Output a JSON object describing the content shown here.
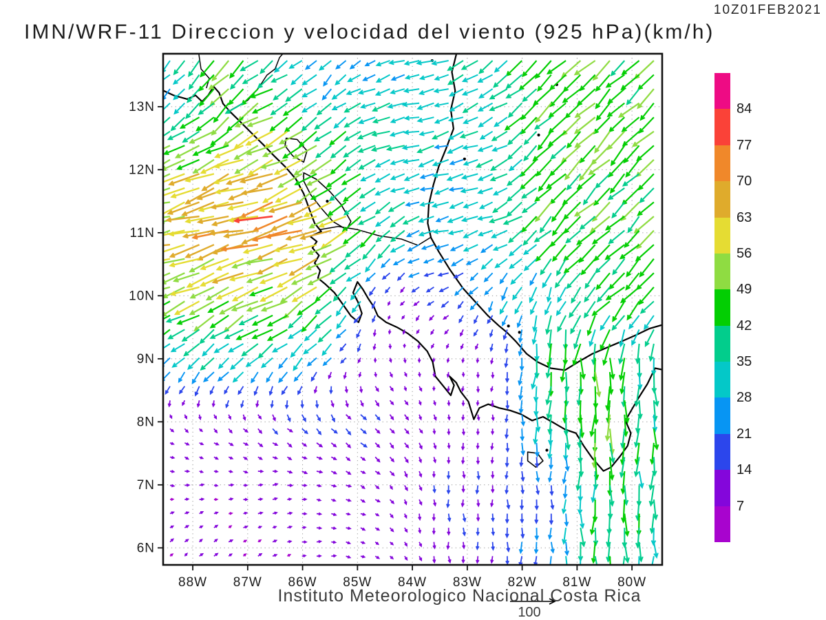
{
  "header": {
    "timestamp": "10Z01FEB2021",
    "title": "IMN/WRF-11 Direccion y velocidad del viento (925 hPa)(km/h)"
  },
  "footer": {
    "credit": "Instituto Meteorologico Nacional Costa Rica"
  },
  "chart_data": {
    "type": "vector_field",
    "title": "IMN/WRF-11 Direccion y velocidad del viento (925 hPa)(km/h)",
    "valid_time": "10Z01FEB2021",
    "level": "925 hPa",
    "units": "km/h",
    "domain": {
      "lon_min": -88.54,
      "lon_max": -79.45,
      "lat_min": 5.73,
      "lat_max": 13.84
    },
    "lat_ticks": [
      {
        "value": 13,
        "label": "13N"
      },
      {
        "value": 12,
        "label": "12N"
      },
      {
        "value": 11,
        "label": "11N"
      },
      {
        "value": 10,
        "label": "10N"
      },
      {
        "value": 9,
        "label": "9N"
      },
      {
        "value": 8,
        "label": "8N"
      },
      {
        "value": 7,
        "label": "7N"
      },
      {
        "value": 6,
        "label": "6N"
      }
    ],
    "lon_ticks": [
      {
        "value": -88,
        "label": "88W"
      },
      {
        "value": -87,
        "label": "87W"
      },
      {
        "value": -86,
        "label": "86W"
      },
      {
        "value": -85,
        "label": "85W"
      },
      {
        "value": -84,
        "label": "84W"
      },
      {
        "value": -83,
        "label": "83W"
      },
      {
        "value": -82,
        "label": "82W"
      },
      {
        "value": -81,
        "label": "81W"
      },
      {
        "value": -80,
        "label": "80W"
      }
    ],
    "grid_on": true,
    "colorbar": {
      "levels": [
        7,
        14,
        21,
        28,
        35,
        42,
        49,
        56,
        63,
        70,
        77,
        84
      ],
      "colors": [
        "#A804CE",
        "#8406DB",
        "#2C46EC",
        "#0795F3",
        "#04C8C8",
        "#02CD8C",
        "#03CE03",
        "#8FDC42",
        "#E5DC33",
        "#DFAB2C",
        "#F0882A",
        "#FA4238",
        "#EE0B84"
      ]
    },
    "reference_vector": {
      "label": "100",
      "speed": 100
    },
    "wind_grid": {
      "lons": [
        -88.5,
        -87.5,
        -86.5,
        -85.5,
        -84.5,
        -83.5,
        -82.5,
        -81.5,
        -80.5,
        -79.5
      ],
      "lats": [
        6,
        7,
        8,
        9,
        10,
        11,
        12,
        13,
        14
      ],
      "u": [
        [
          6,
          6,
          7,
          9,
          7,
          1,
          0,
          0,
          0,
          0
        ],
        [
          8,
          8,
          9,
          9,
          7,
          1,
          0,
          0,
          0,
          0
        ],
        [
          6,
          7,
          10,
          11,
          10,
          2,
          0,
          0,
          0,
          0
        ],
        [
          -21,
          -23,
          -23,
          -14,
          3,
          0,
          -2,
          -3,
          0,
          0
        ],
        [
          -45,
          -48,
          -48,
          -34,
          -3,
          -15,
          -12,
          -8,
          -30,
          -30
        ],
        [
          -56,
          -64,
          -68,
          -58,
          -28,
          -28,
          -30,
          -30,
          -32,
          -32
        ],
        [
          -50,
          -55,
          -62,
          -40,
          -31,
          -30,
          -32,
          -32,
          -33,
          -33
        ],
        [
          -20,
          -32,
          -45,
          -24,
          -33,
          -31,
          -30,
          -31,
          -33,
          -33
        ],
        [
          -17,
          -36,
          -18,
          -17,
          -20,
          -30,
          -26,
          -31,
          -33,
          -33
        ]
      ],
      "v": [
        [
          5,
          5,
          3,
          0,
          -5,
          -13,
          -15,
          -25,
          -42,
          -35
        ],
        [
          0,
          0,
          1,
          -2,
          -7,
          -14,
          -16,
          -18,
          -44,
          -36
        ],
        [
          -6,
          -7,
          -10,
          -11,
          -10,
          -10,
          -12,
          -35,
          -48,
          -38
        ],
        [
          -21,
          -23,
          -23,
          -14,
          -8,
          -8,
          -10,
          -45,
          -45,
          -35
        ],
        [
          -22,
          -24,
          -24,
          -34,
          -9,
          -7,
          -22,
          -30,
          -30,
          -30
        ],
        [
          -14,
          -16,
          -17,
          -22,
          -28,
          -7,
          -10,
          -30,
          -32,
          -32
        ],
        [
          -20,
          -22,
          -25,
          -30,
          -10,
          -8,
          -10,
          -32,
          -33,
          -33
        ],
        [
          -20,
          -32,
          -22,
          -24,
          -10,
          -8,
          -15,
          -31,
          -33,
          -33
        ],
        [
          -17,
          -36,
          -18,
          -17,
          -10,
          -8,
          -26,
          -31,
          -33,
          -33
        ]
      ]
    },
    "coastlines": {
      "pacific_coast": [
        [
          -88.6,
          13.28
        ],
        [
          -88.35,
          13.18
        ],
        [
          -88.1,
          13.12
        ],
        [
          -87.95,
          13.18
        ],
        [
          -87.83,
          13.08
        ],
        [
          -87.72,
          13.18
        ],
        [
          -87.62,
          13.32
        ],
        [
          -87.52,
          13.22
        ],
        [
          -87.45,
          13.05
        ],
        [
          -87.32,
          12.92
        ],
        [
          -87.18,
          12.8
        ],
        [
          -86.95,
          12.6
        ],
        [
          -86.72,
          12.4
        ],
        [
          -86.52,
          12.22
        ],
        [
          -86.32,
          12.05
        ],
        [
          -86.12,
          11.85
        ],
        [
          -85.98,
          11.62
        ],
        [
          -85.88,
          11.38
        ],
        [
          -85.78,
          11.15
        ],
        [
          -85.66,
          11.02
        ],
        [
          -85.86,
          10.94
        ],
        [
          -85.74,
          10.86
        ],
        [
          -85.82,
          10.76
        ],
        [
          -85.7,
          10.64
        ],
        [
          -85.78,
          10.52
        ],
        [
          -85.68,
          10.4
        ],
        [
          -85.72,
          10.28
        ],
        [
          -85.58,
          10.18
        ],
        [
          -85.42,
          10.05
        ],
        [
          -85.28,
          9.88
        ],
        [
          -85.12,
          9.68
        ],
        [
          -84.98,
          9.58
        ],
        [
          -84.92,
          9.72
        ],
        [
          -84.99,
          9.9
        ],
        [
          -85.08,
          10.05
        ],
        [
          -85.0,
          10.22
        ],
        [
          -84.9,
          10.1
        ],
        [
          -84.8,
          9.95
        ],
        [
          -84.7,
          9.82
        ],
        [
          -84.63,
          9.68
        ],
        [
          -84.48,
          9.58
        ],
        [
          -84.28,
          9.5
        ],
        [
          -84.08,
          9.4
        ],
        [
          -83.9,
          9.28
        ],
        [
          -83.73,
          9.12
        ],
        [
          -83.63,
          8.95
        ],
        [
          -83.58,
          8.72
        ],
        [
          -83.45,
          8.58
        ],
        [
          -83.3,
          8.42
        ],
        [
          -83.24,
          8.58
        ],
        [
          -83.32,
          8.72
        ],
        [
          -83.2,
          8.62
        ],
        [
          -83.12,
          8.48
        ],
        [
          -82.98,
          8.32
        ],
        [
          -82.88,
          8.04
        ],
        [
          -82.78,
          8.22
        ],
        [
          -82.62,
          8.28
        ],
        [
          -82.42,
          8.22
        ],
        [
          -82.22,
          8.18
        ],
        [
          -82.02,
          8.12
        ],
        [
          -81.82,
          8.02
        ],
        [
          -81.62,
          8.08
        ],
        [
          -81.42,
          7.98
        ],
        [
          -81.22,
          7.88
        ],
        [
          -81.02,
          7.82
        ],
        [
          -80.88,
          7.62
        ],
        [
          -80.72,
          7.42
        ],
        [
          -80.52,
          7.22
        ],
        [
          -80.38,
          7.28
        ],
        [
          -80.22,
          7.45
        ],
        [
          -80.08,
          7.62
        ],
        [
          -80.02,
          7.82
        ],
        [
          -80.12,
          8.02
        ],
        [
          -80.0,
          8.2
        ],
        [
          -79.88,
          8.38
        ],
        [
          -79.72,
          8.6
        ],
        [
          -79.58,
          8.85
        ],
        [
          -79.4,
          8.82
        ]
      ],
      "caribbean_coast": [
        [
          -83.18,
          13.9
        ],
        [
          -83.28,
          13.55
        ],
        [
          -83.22,
          13.25
        ],
        [
          -83.3,
          12.95
        ],
        [
          -83.25,
          12.65
        ],
        [
          -83.38,
          12.35
        ],
        [
          -83.52,
          12.05
        ],
        [
          -83.62,
          11.75
        ],
        [
          -83.7,
          11.45
        ],
        [
          -83.72,
          11.15
        ],
        [
          -83.66,
          10.92
        ],
        [
          -83.52,
          10.7
        ],
        [
          -83.32,
          10.42
        ],
        [
          -83.08,
          10.12
        ],
        [
          -82.85,
          9.9
        ],
        [
          -82.62,
          9.68
        ],
        [
          -82.42,
          9.52
        ],
        [
          -82.28,
          9.42
        ],
        [
          -82.12,
          9.28
        ],
        [
          -81.92,
          9.08
        ],
        [
          -81.72,
          8.95
        ],
        [
          -81.48,
          8.85
        ],
        [
          -81.22,
          8.82
        ],
        [
          -80.98,
          8.95
        ],
        [
          -80.72,
          9.08
        ],
        [
          -80.45,
          9.18
        ],
        [
          -80.18,
          9.28
        ],
        [
          -79.92,
          9.38
        ],
        [
          -79.68,
          9.48
        ],
        [
          -79.4,
          9.55
        ]
      ],
      "borders": [
        [
          [
            -87.9,
            13.9
          ],
          [
            -87.85,
            13.6
          ],
          [
            -87.7,
            13.45
          ],
          [
            -87.75,
            13.3
          ]
        ],
        [
          [
            -87.3,
            12.95
          ],
          [
            -87.0,
            13.1
          ],
          [
            -86.8,
            13.3
          ],
          [
            -86.65,
            13.5
          ],
          [
            -86.5,
            13.6
          ],
          [
            -86.42,
            13.78
          ],
          [
            -86.3,
            13.9
          ]
        ],
        [
          [
            -85.68,
            11.05
          ],
          [
            -85.35,
            11.1
          ],
          [
            -85.0,
            11.05
          ],
          [
            -84.6,
            10.95
          ],
          [
            -84.2,
            10.9
          ],
          [
            -83.9,
            10.8
          ],
          [
            -83.68,
            10.92
          ]
        ]
      ],
      "lakes": [
        [
          [
            -85.98,
            11.95
          ],
          [
            -85.75,
            11.85
          ],
          [
            -85.5,
            11.65
          ],
          [
            -85.3,
            11.45
          ],
          [
            -85.12,
            11.18
          ],
          [
            -85.2,
            11.05
          ],
          [
            -85.45,
            11.18
          ],
          [
            -85.65,
            11.38
          ],
          [
            -85.85,
            11.6
          ],
          [
            -85.98,
            11.82
          ]
        ],
        [
          [
            -86.3,
            12.5
          ],
          [
            -86.1,
            12.48
          ],
          [
            -85.92,
            12.3
          ],
          [
            -85.98,
            12.12
          ],
          [
            -86.18,
            12.22
          ],
          [
            -86.32,
            12.38
          ]
        ]
      ],
      "islands": [
        [
          [
            -81.9,
            7.52
          ],
          [
            -81.72,
            7.5
          ],
          [
            -81.62,
            7.38
          ],
          [
            -81.75,
            7.28
          ],
          [
            -81.9,
            7.38
          ]
        ]
      ],
      "island_dots": [
        [
          -81.37,
          13.35
        ],
        [
          -81.7,
          12.55
        ],
        [
          -83.05,
          12.17
        ],
        [
          -83.64,
          13.73
        ],
        [
          -82.25,
          9.52
        ],
        [
          -82.05,
          9.42
        ],
        [
          -85.55,
          11.5
        ],
        [
          -81.55,
          7.55
        ]
      ]
    }
  }
}
